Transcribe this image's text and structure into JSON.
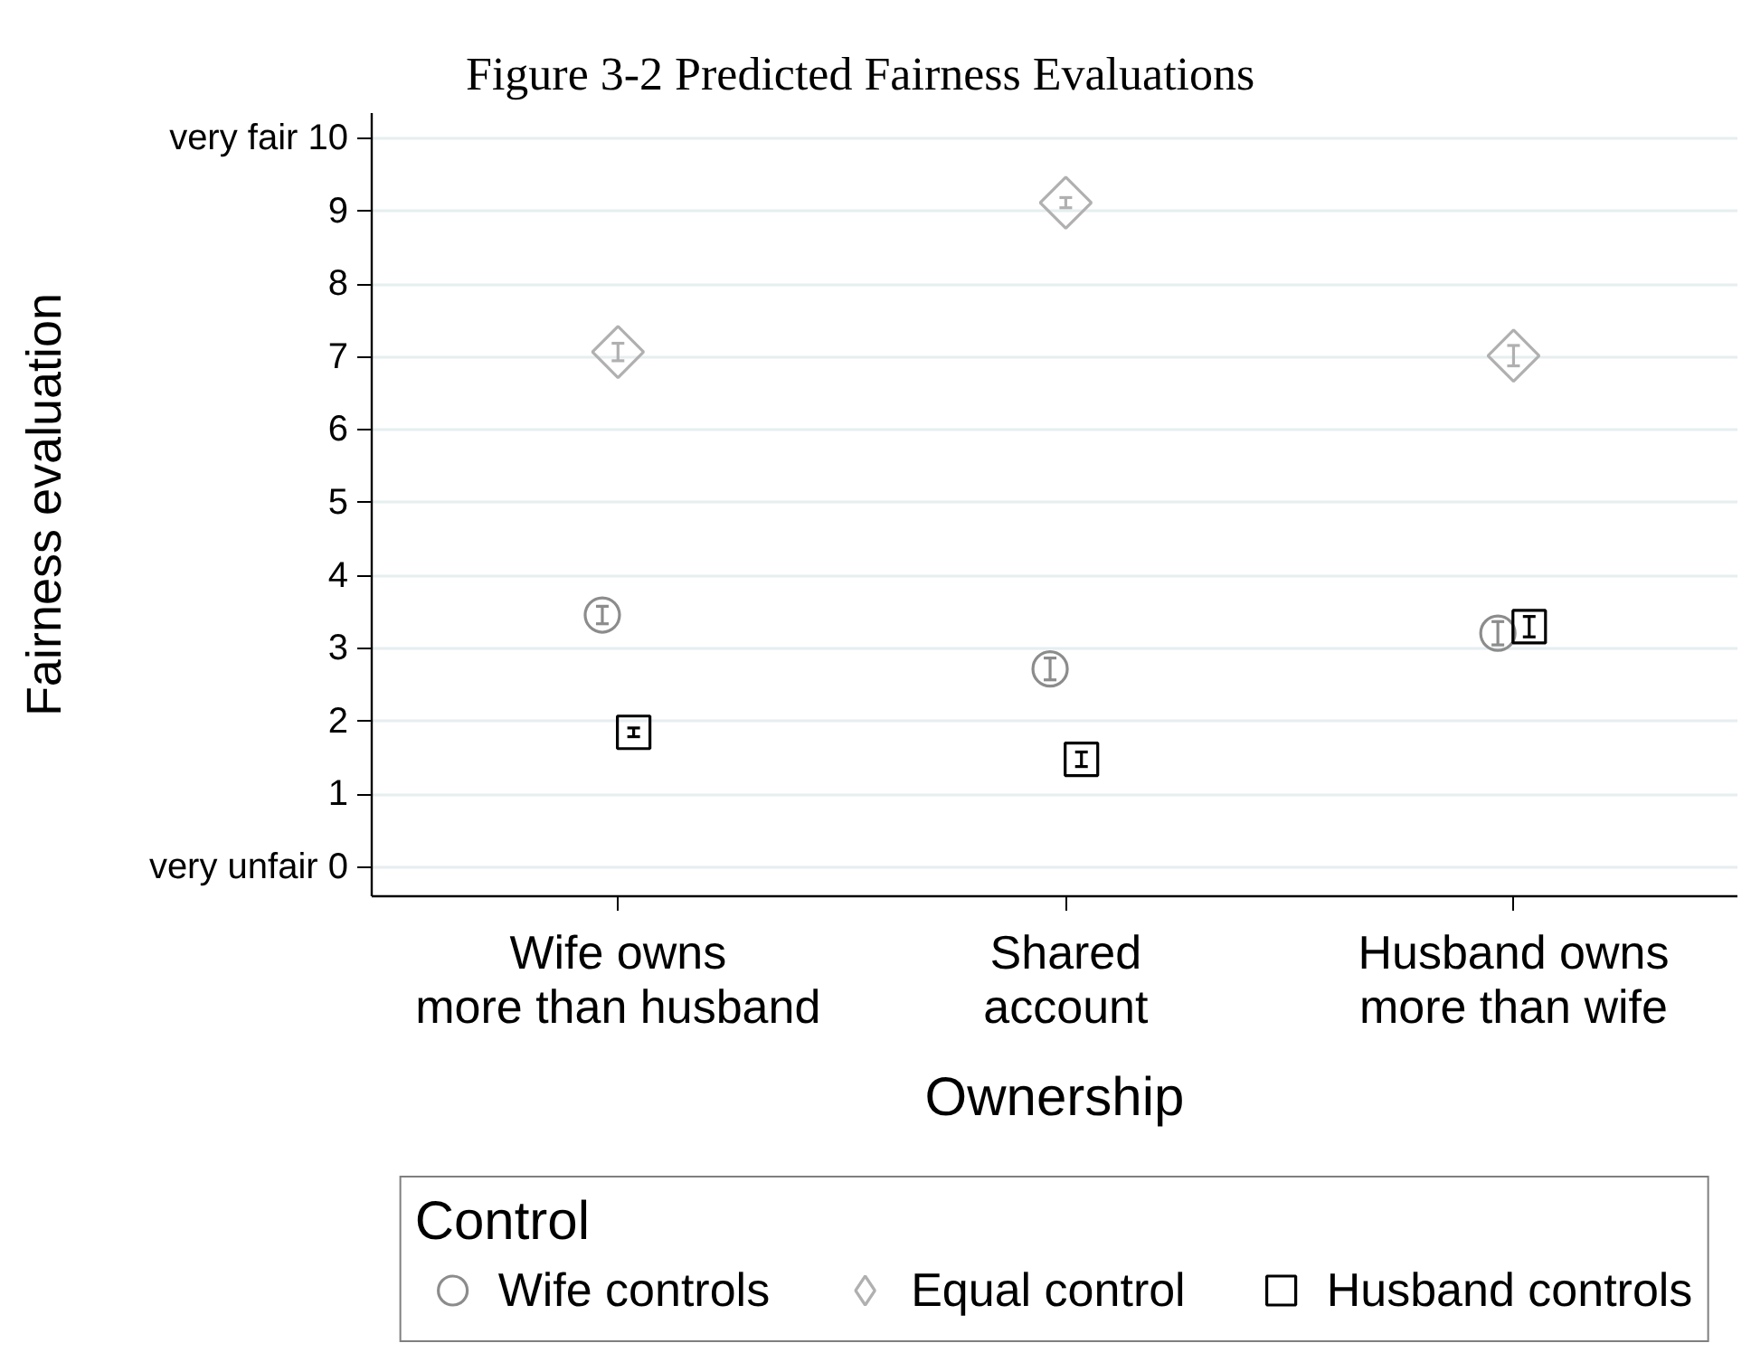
{
  "chart_data": {
    "type": "scatter",
    "title": "Figure 3-2 Predicted Fairness Evaluations",
    "xlabel": "Ownership",
    "ylabel": "Fairness evaluation",
    "legend_title": "Control",
    "categories": [
      "Wife owns\nmore than husband",
      "Shared\naccount",
      "Husband owns\nmore than wife"
    ],
    "series": [
      {
        "name": "Wife controls",
        "color": "#8c8c8c",
        "marker": "circle",
        "values": [
          3.46,
          2.72,
          3.21
        ],
        "errors": [
          0.12,
          0.15,
          0.16
        ]
      },
      {
        "name": "Equal control",
        "color": "#b0b0b0",
        "marker": "diamond",
        "values": [
          7.07,
          9.12,
          7.02
        ],
        "errors": [
          0.12,
          0.07,
          0.14
        ]
      },
      {
        "name": "Husband controls",
        "color": "#000000",
        "marker": "square",
        "values": [
          1.85,
          1.48,
          3.3
        ],
        "errors": [
          0.06,
          0.1,
          0.14
        ]
      }
    ],
    "ylim": [
      -0.4,
      10.35
    ],
    "yticks": [
      {
        "value": 0,
        "label": "very unfair 0"
      },
      1,
      2,
      3,
      4,
      5,
      6,
      7,
      8,
      9,
      {
        "value": 10,
        "label": "very fair 10"
      }
    ],
    "grid": "y",
    "legend": "bottom"
  }
}
